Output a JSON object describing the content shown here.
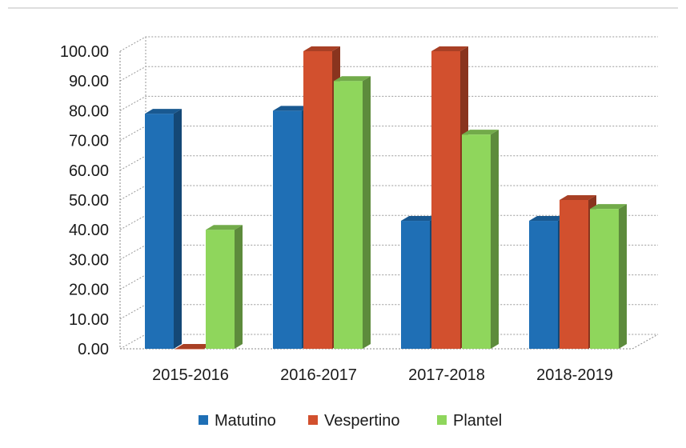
{
  "chart_data": {
    "type": "bar",
    "style": "3d-clustered-column",
    "categories": [
      "2015-2016",
      "2016-2017",
      "2017-2018",
      "2018-2019"
    ],
    "series": [
      {
        "name": "Matutino",
        "values": [
          79,
          80,
          43,
          43
        ],
        "color": "#1f6fb5"
      },
      {
        "name": "Vespertino",
        "values": [
          0,
          100,
          100,
          50
        ],
        "color": "#d2502e"
      },
      {
        "name": "Plantel",
        "values": [
          40,
          90,
          72,
          47
        ],
        "color": "#8fd65c"
      }
    ],
    "y_ticks": [
      "0.00",
      "10.00",
      "20.00",
      "30.00",
      "40.00",
      "50.00",
      "60.00",
      "70.00",
      "80.00",
      "90.00",
      "100.00"
    ],
    "ylim": [
      0,
      100
    ],
    "grid": true,
    "legend_position": "bottom"
  }
}
